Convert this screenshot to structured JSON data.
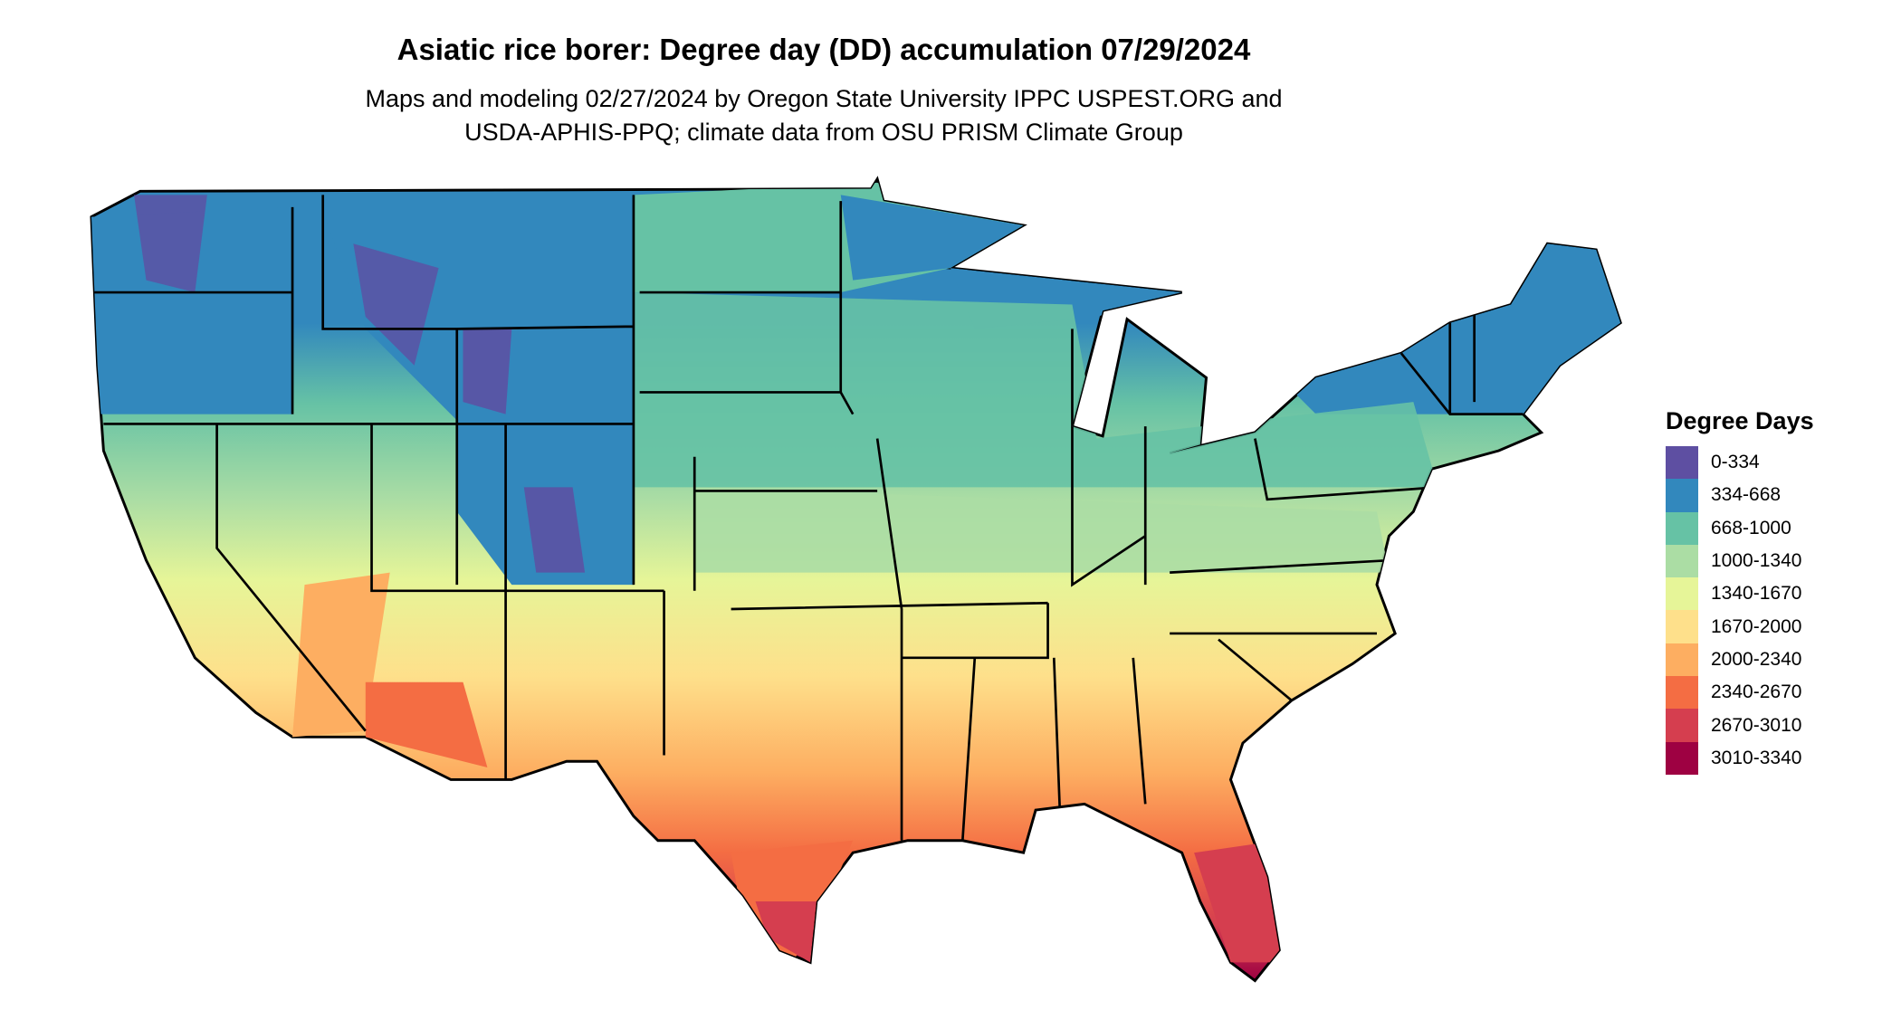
{
  "title": "Asiatic rice borer: Degree day (DD) accumulation 07/29/2024",
  "subtitle_lines": [
    "Maps and modeling 02/27/2024 by Oregon State University IPPC USPEST.ORG and",
    "USDA-APHIS-PPQ; climate data from OSU PRISM Climate Group"
  ],
  "legend": {
    "title": "Degree Days",
    "items": [
      {
        "label": "0-334",
        "color": "#5e4fa2"
      },
      {
        "label": "334-668",
        "color": "#3288bd"
      },
      {
        "label": "668-1000",
        "color": "#66c2a5"
      },
      {
        "label": "1000-1340",
        "color": "#abdda4"
      },
      {
        "label": "1340-1670",
        "color": "#e6f598"
      },
      {
        "label": "1670-2000",
        "color": "#fee08b"
      },
      {
        "label": "2000-2340",
        "color": "#fdae61"
      },
      {
        "label": "2340-2670",
        "color": "#f46d43"
      },
      {
        "label": "2670-3010",
        "color": "#d53e4f"
      },
      {
        "label": "3010-3340",
        "color": "#9e0142"
      }
    ]
  },
  "map": {
    "region": "contiguous United States",
    "border_color": "#000000"
  }
}
